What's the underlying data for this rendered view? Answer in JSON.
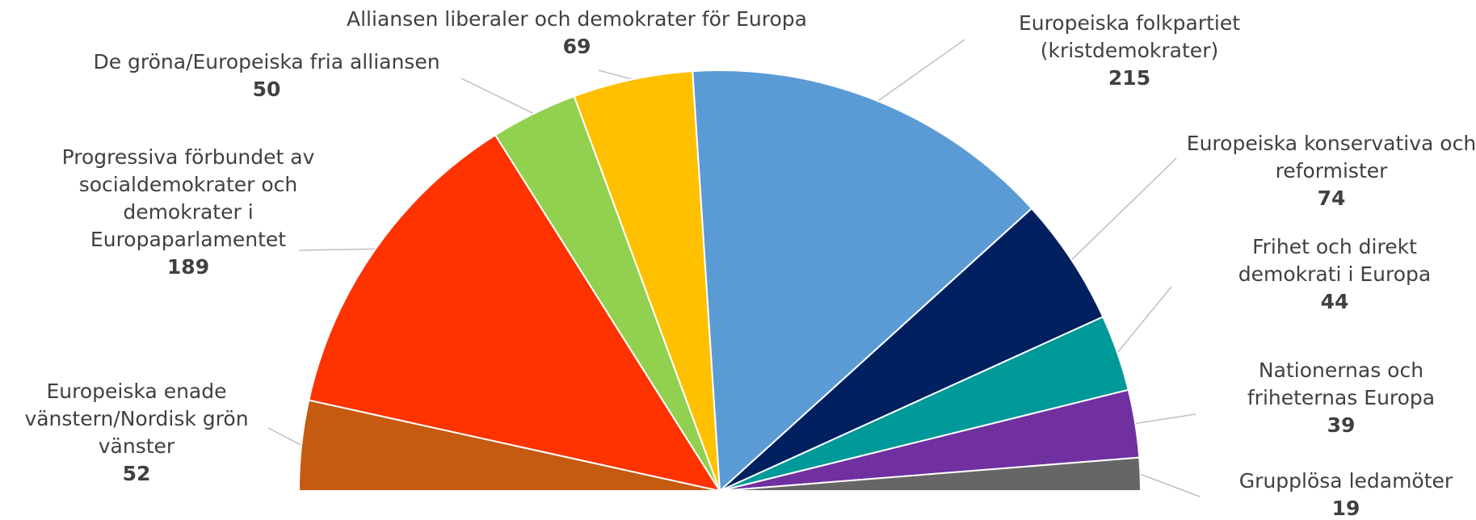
{
  "chart_data": {
    "type": "half-pie",
    "categories": [
      "Europeiska enade vänstern/Nordisk grön vänster",
      "Progressiva förbundet av socialdemokrater och demokrater i Europaparlamentet",
      "De gröna/Europeiska fria alliansen",
      "Alliansen liberaler och demokrater för Europa",
      "Europeiska folkpartiet (kristdemokrater)",
      "Europeiska konservativa och reformister",
      "Frihet och direkt demokrati i Europa",
      "Nationernas och friheternas Europa",
      "Grupplösa ledamöter"
    ],
    "values": [
      52,
      189,
      50,
      69,
      215,
      74,
      44,
      39,
      19
    ],
    "colors": [
      "#c55a11",
      "#ff3300",
      "#92d050",
      "#ffc000",
      "#5b9bd5",
      "#002060",
      "#009999",
      "#7030a0",
      "#666666"
    ]
  }
}
